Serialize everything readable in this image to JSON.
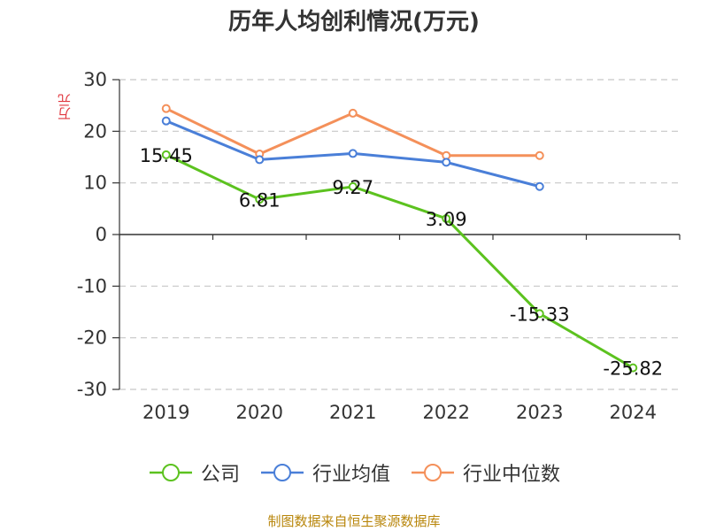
{
  "chart_data": {
    "type": "line",
    "title": "历年人均创利情况(万元)",
    "ylabel": "万元",
    "xlabel": "",
    "categories": [
      "2019",
      "2020",
      "2021",
      "2022",
      "2023",
      "2024"
    ],
    "ylim": [
      -30,
      30
    ],
    "yticks": [
      30,
      20,
      10,
      0,
      -10,
      -20,
      -30
    ],
    "grid": true,
    "legend_position": "bottom",
    "series": [
      {
        "name": "公司",
        "color": "#5cc21f",
        "values": [
          15.45,
          6.81,
          9.27,
          3.09,
          -15.33,
          -25.82
        ],
        "labels": [
          "15.45",
          "6.81",
          "9.27",
          "3.09",
          "-15.33",
          "-25.82"
        ]
      },
      {
        "name": "行业均值",
        "color": "#4a7fd8",
        "values": [
          22.0,
          14.5,
          15.7,
          14.0,
          9.3,
          null
        ]
      },
      {
        "name": "行业中位数",
        "color": "#f4905a",
        "values": [
          24.4,
          15.6,
          23.5,
          15.3,
          15.3,
          null
        ]
      }
    ]
  },
  "footer": "制图数据来自恒生聚源数据库"
}
